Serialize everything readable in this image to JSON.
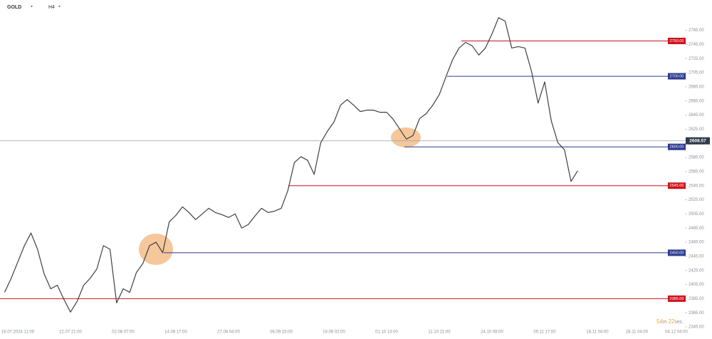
{
  "header": {
    "symbol": "GOLD",
    "timeframe": "H4"
  },
  "chart_data": {
    "type": "line",
    "categories": [
      null,
      null,
      "16.07.2024 11:00",
      null,
      null,
      null,
      null,
      null,
      null,
      null,
      "22.07 21:00",
      null,
      null,
      null,
      null,
      null,
      null,
      null,
      "02.08 07:00",
      null,
      null,
      null,
      null,
      null,
      null,
      null,
      "14.08 17:00",
      null,
      null,
      null,
      null,
      null,
      null,
      null,
      "27.08 04:00",
      null,
      null,
      null,
      null,
      null,
      null,
      null,
      "06.09 15:00",
      null,
      null,
      null,
      null,
      null,
      null,
      null,
      "19.09 02:00",
      null,
      null,
      null,
      null,
      null,
      null,
      null,
      "01.10 13:00",
      null,
      null,
      null,
      null,
      null,
      null,
      null,
      "11.10 21:00",
      null,
      null,
      null,
      null,
      null,
      null,
      null,
      "24.10 08:00",
      null,
      null,
      null,
      null,
      null,
      null,
      null,
      "05.11 17:00",
      null,
      null,
      null,
      null,
      null,
      null,
      null,
      "18.11 04:00",
      null,
      null,
      null,
      null,
      null,
      "28.11 04:00",
      null,
      null,
      null,
      null,
      null,
      "04.12 04:00"
    ],
    "series": [
      {
        "color": "#3c4043",
        "values": [
          2394,
          2414,
          2437,
          2460,
          2478,
          2455,
          2420,
          2399,
          2404,
          2384,
          2366,
          2381,
          2404,
          2414,
          2427,
          2460,
          2455,
          2379,
          2399,
          2394,
          2422,
          2435,
          2460,
          2465,
          2450,
          2494,
          2503,
          2515,
          2507,
          2497,
          2505,
          2513,
          2507,
          2504,
          2500,
          2505,
          2485,
          2490,
          2502,
          2513,
          2507,
          2509,
          2513,
          2538,
          2578,
          2586,
          2581,
          2561,
          2606,
          2622,
          2635,
          2659,
          2667,
          2659,
          2650,
          2652,
          2652,
          2649,
          2649,
          2639,
          2625,
          2611,
          2616,
          2640,
          2647,
          2659,
          2674,
          2699,
          2723,
          2740,
          2748,
          2743,
          2730,
          2740,
          2760,
          2783,
          2778,
          2740,
          2742,
          2740,
          2707,
          2662,
          2692,
          2637,
          2606,
          2596,
          2551,
          2566,
          null,
          null,
          null,
          null,
          null,
          null,
          null,
          null,
          null,
          null,
          null,
          null,
          null,
          null,
          null
        ]
      }
    ],
    "ylim": [
      2342,
      2808
    ],
    "yticks": [
      {
        "value": 2765,
        "label": "2765.00"
      },
      {
        "value": 2745,
        "label": "2745.00"
      },
      {
        "value": 2725,
        "label": "2725.00"
      },
      {
        "value": 2705,
        "label": "2705.00"
      },
      {
        "value": 2685,
        "label": "2685.00"
      },
      {
        "value": 2665,
        "label": "2665.00"
      },
      {
        "value": 2645,
        "label": "2645.00"
      },
      {
        "value": 2625,
        "label": "2625.00"
      },
      {
        "value": 2605,
        "label": "2605.00"
      },
      {
        "value": 2585,
        "label": "2585.00"
      },
      {
        "value": 2565,
        "label": "2565.00"
      },
      {
        "value": 2545,
        "label": "2545.00"
      },
      {
        "value": 2525,
        "label": "2525.00"
      },
      {
        "value": 2505,
        "label": "2505.00"
      },
      {
        "value": 2485,
        "label": "2485.00"
      },
      {
        "value": 2465,
        "label": "2465.00"
      },
      {
        "value": 2445,
        "label": "2445.00"
      },
      {
        "value": 2425,
        "label": "2425.00"
      },
      {
        "value": 2405,
        "label": "2405.00"
      },
      {
        "value": 2385,
        "label": "2385.00"
      },
      {
        "value": 2365,
        "label": "2365.00"
      },
      {
        "value": 2345,
        "label": "2345.00"
      }
    ],
    "levels": [
      {
        "value": 2750,
        "label": "2750.00",
        "color": "#d0121b"
      },
      {
        "value": 2700,
        "label": "2700.00",
        "color": "#2b3a90"
      },
      {
        "value": 2600,
        "label": "2600.00",
        "color": "#2b3a90"
      },
      {
        "value": 2545,
        "label": "2545.00",
        "color": "#d0121b"
      },
      {
        "value": 2450,
        "label": "2450.00",
        "color": "#2b3a90"
      },
      {
        "value": 2385,
        "label": "2385.00",
        "color": "#d0121b"
      }
    ],
    "current_price": 2608.57,
    "countdown": {
      "minutes": "54",
      "minutes_unit": "m",
      "seconds": "22",
      "seconds_unit": "sec."
    }
  }
}
